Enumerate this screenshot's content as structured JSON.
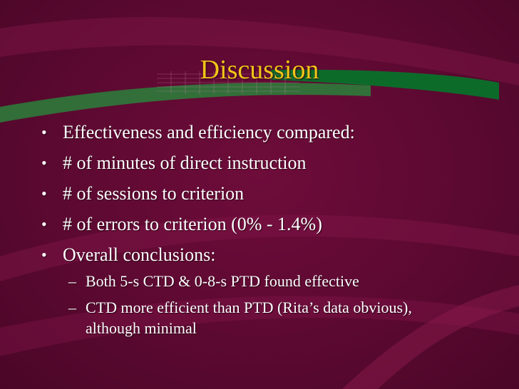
{
  "slide": {
    "title": "Discussion",
    "bullets": [
      "Effectiveness and efficiency compared:",
      "# of minutes of direct instruction",
      "# of sessions to criterion",
      "# of errors to criterion (0% - 1.4%)",
      "Overall conclusions:"
    ],
    "sub_bullets": [
      "Both 5-s CTD & 0-8-s PTD found effective",
      "CTD more efficient than PTD (Rita’s data obvious), although minimal"
    ],
    "bullet_symbol": "•",
    "sub_bullet_symbol": "–"
  },
  "colors": {
    "background": "#5c0931",
    "title": "#f2c418",
    "text": "#ffffff",
    "accent_green": "#0d6b2a",
    "swoosh": "#8a1a4c"
  }
}
